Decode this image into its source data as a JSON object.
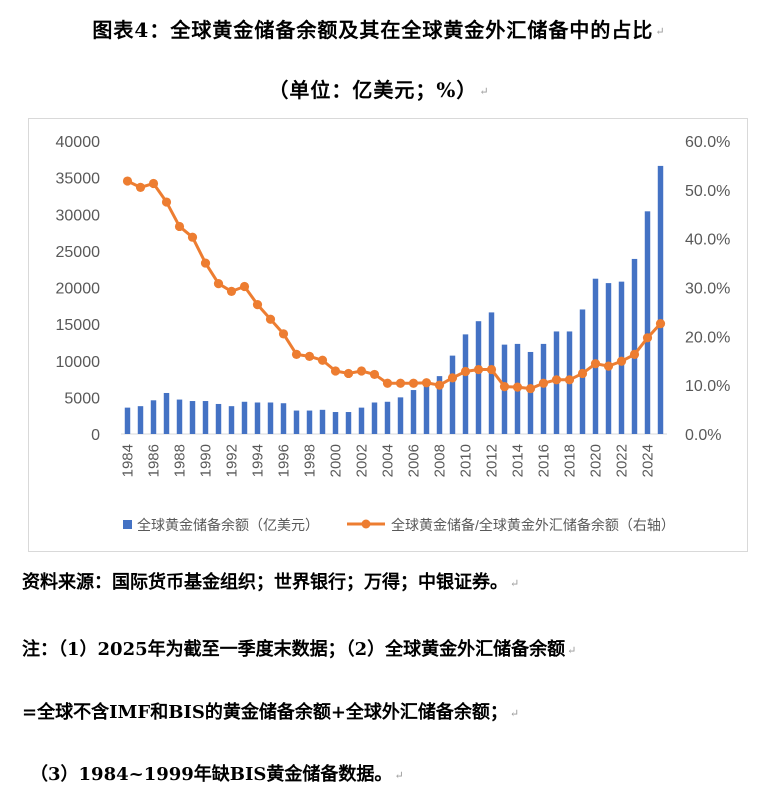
{
  "title": "图表4：全球黄金储备余额及其在全球黄金外汇储备中的占比",
  "subtitle": "（单位：亿美元；%）",
  "source": "资料来源：国际货币基金组织；世界银行；万得；中银证券。",
  "notes": [
    "注：（1）2025年为截至一季度末数据；（2）全球黄金外汇储备余额",
    "=全球不含IMF和BIS的黄金储备余额+全球外汇储备余额；",
    "（3）1984~1999年缺BIS黄金储备数据。"
  ],
  "chart_data": {
    "type": "bar",
    "categories": [
      "1984",
      "1985",
      "1986",
      "1987",
      "1988",
      "1989",
      "1990",
      "1991",
      "1992",
      "1993",
      "1994",
      "1995",
      "1996",
      "1997",
      "1998",
      "1999",
      "2000",
      "2001",
      "2002",
      "2003",
      "2004",
      "2005",
      "2006",
      "2007",
      "2008",
      "2009",
      "2010",
      "2011",
      "2012",
      "2013",
      "2014",
      "2015",
      "2016",
      "2017",
      "2018",
      "2019",
      "2020",
      "2021",
      "2022",
      "2023",
      "2024",
      "2025"
    ],
    "x_tick_labels": [
      "1984",
      "1986",
      "1988",
      "1990",
      "1992",
      "1994",
      "1996",
      "1998",
      "2000",
      "2002",
      "2004",
      "2006",
      "2008",
      "2010",
      "2012",
      "2014",
      "2016",
      "2018",
      "2020",
      "2022",
      "2024"
    ],
    "series": [
      {
        "name": "全球黄金储备余额（亿美元）",
        "type": "bar",
        "axis": "left",
        "color": "#4472c4",
        "values": [
          3600,
          3800,
          4600,
          5600,
          4700,
          4500,
          4500,
          4100,
          3800,
          4400,
          4300,
          4300,
          4200,
          3200,
          3200,
          3300,
          3000,
          3000,
          3600,
          4300,
          4400,
          5000,
          6000,
          7100,
          7900,
          10700,
          13600,
          15400,
          16600,
          12200,
          12300,
          11200,
          12300,
          14000,
          14000,
          17000,
          21200,
          20600,
          20800,
          23900,
          30400,
          36600
        ]
      },
      {
        "name": "全球黄金储备/全球黄金外汇储备余额（右轴）",
        "type": "line",
        "axis": "right",
        "color": "#ed7d31",
        "values": [
          51.8,
          50.5,
          51.3,
          47.5,
          42.5,
          40.3,
          35.0,
          30.8,
          29.2,
          30.2,
          26.5,
          23.5,
          20.5,
          16.3,
          15.9,
          15.1,
          12.9,
          12.4,
          12.9,
          12.2,
          10.4,
          10.4,
          10.4,
          10.5,
          10.0,
          11.5,
          12.8,
          13.2,
          13.2,
          9.7,
          9.6,
          9.3,
          10.4,
          11.1,
          11.1,
          12.4,
          14.4,
          13.9,
          14.9,
          16.3,
          19.7,
          22.6
        ]
      }
    ],
    "y_left": {
      "lim": [
        0,
        40000
      ],
      "ticks": [
        "0",
        "5000",
        "10000",
        "15000",
        "20000",
        "25000",
        "30000",
        "35000",
        "40000"
      ]
    },
    "y_right": {
      "lim": [
        0,
        60
      ],
      "ticks": [
        "0.0%",
        "10.0%",
        "20.0%",
        "30.0%",
        "40.0%",
        "50.0%",
        "60.0%"
      ]
    },
    "legend_position": "bottom",
    "grid": false
  }
}
